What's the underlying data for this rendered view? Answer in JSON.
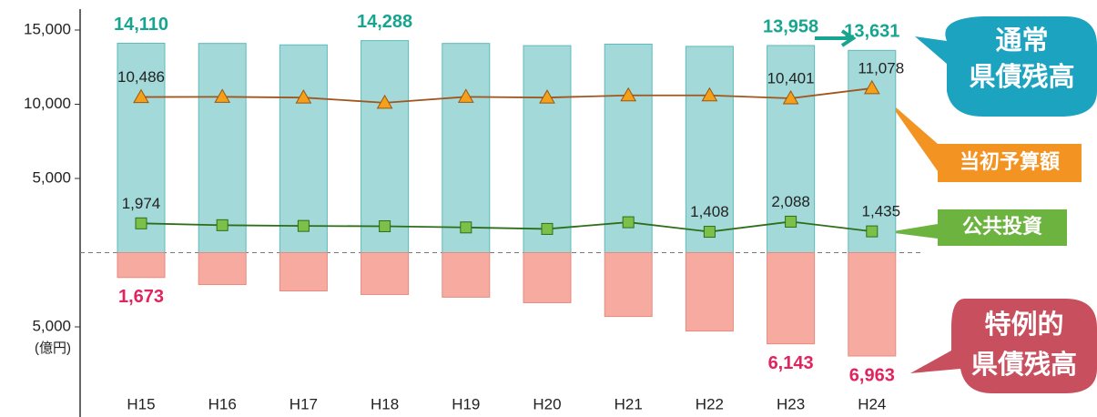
{
  "chart_data": {
    "type": "bar-line",
    "categories": [
      "H15",
      "H16",
      "H17",
      "H18",
      "H19",
      "H20",
      "H21",
      "H22",
      "H23",
      "H24"
    ],
    "unit_label": "(億円)",
    "ylim": [
      -8500,
      16500
    ],
    "yticks": [
      {
        "value": 15000,
        "label": "15,000"
      },
      {
        "value": 10000,
        "label": "10,000"
      },
      {
        "value": 5000,
        "label": "5,000"
      },
      {
        "value": -5000,
        "label": "5,000"
      }
    ],
    "series": [
      {
        "name": "通常\n県債残高",
        "kind": "bar",
        "color": "#a3d9d9",
        "label_color": "#17a58f",
        "values": [
          14110,
          14100,
          14000,
          14288,
          14100,
          13950,
          14050,
          13900,
          13958,
          13631
        ],
        "value_labels": [
          "14,110",
          null,
          null,
          "14,288",
          null,
          null,
          null,
          null,
          "13,958",
          "13,631"
        ]
      },
      {
        "name": "特例的\n県債残高",
        "kind": "bar",
        "color": "#f7aba0",
        "label_color": "#e0245e",
        "values": [
          -1673,
          -2150,
          -2580,
          -2820,
          -3000,
          -3370,
          -4300,
          -5280,
          -6143,
          -6963
        ],
        "value_labels": [
          "1,673",
          null,
          null,
          null,
          null,
          null,
          null,
          null,
          "6,143",
          "6,963"
        ]
      },
      {
        "name": "当初予算額",
        "kind": "line",
        "color": "#a0561e",
        "marker_color": "#f5a01a",
        "marker": "triangle",
        "values": [
          10486,
          10500,
          10450,
          10100,
          10500,
          10450,
          10600,
          10600,
          10401,
          11078
        ],
        "value_labels": [
          "10,486",
          null,
          null,
          null,
          null,
          null,
          null,
          null,
          "10,401",
          "11,078"
        ]
      },
      {
        "name": "公共投資",
        "kind": "line",
        "color": "#2e6e1a",
        "marker_color": "#7cc04a",
        "marker": "square",
        "values": [
          1974,
          1850,
          1800,
          1780,
          1700,
          1600,
          2050,
          1408,
          2088,
          1435
        ],
        "value_labels": [
          "1,974",
          null,
          null,
          null,
          null,
          null,
          null,
          "1,408",
          "2,088",
          "1,435"
        ]
      }
    ]
  }
}
